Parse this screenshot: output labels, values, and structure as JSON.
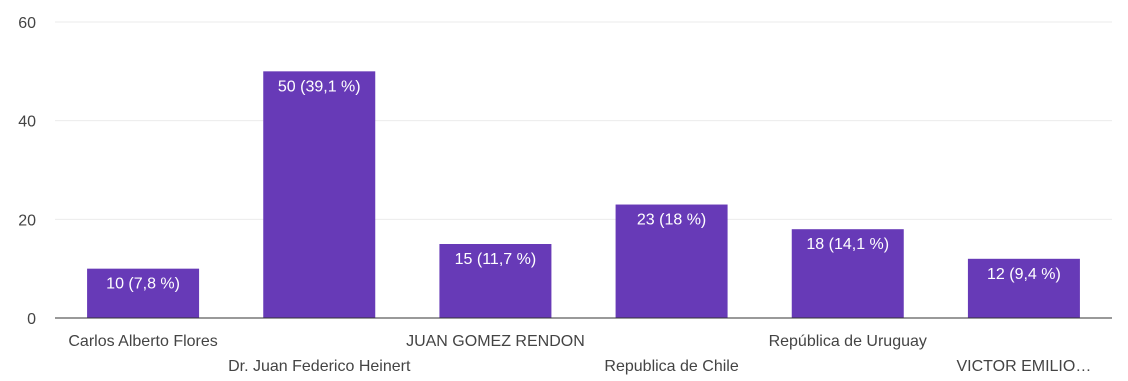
{
  "chart_data": {
    "type": "bar",
    "categories": [
      "Carlos Alberto Flores",
      "Dr. Juan Federico Heinert",
      "JUAN GOMEZ RENDON",
      "Republica de Chile",
      "República de Uruguay",
      "VICTOR EMILIO…"
    ],
    "values": [
      10,
      50,
      15,
      23,
      18,
      12
    ],
    "data_labels": [
      "10 (7,8 %)",
      "50 (39,1 %)",
      "15 (11,7 %)",
      "23 (18 %)",
      "18 (14,1 %)",
      "12 (9,4 %)"
    ],
    "ylim": [
      0,
      60
    ],
    "yticks": [
      0,
      20,
      40,
      60
    ],
    "grid": true,
    "title": "",
    "xlabel": "",
    "ylabel": "",
    "colors": {
      "bar": "#673ab7",
      "label_text": "#ffffff",
      "gridline": "#ebebeb",
      "baseline": "#333333",
      "tick_text": "#444444"
    }
  }
}
